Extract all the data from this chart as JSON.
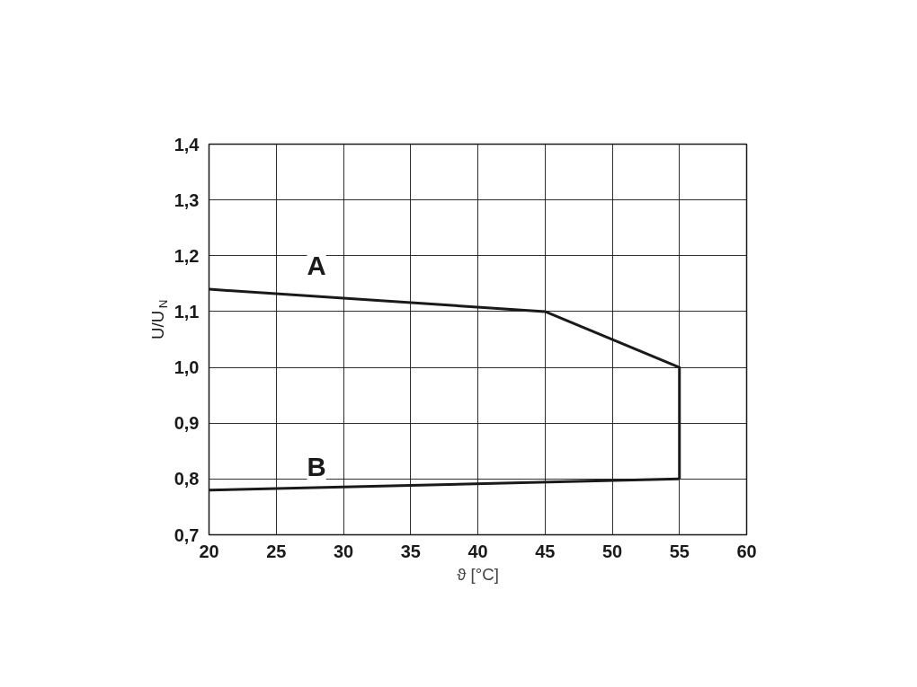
{
  "chart_data": {
    "type": "line",
    "xlabel": "ϑ [°C]",
    "ylabel": "U/U$_{N}$",
    "series": [
      {
        "name": "A",
        "color": "#1a1a1a",
        "x": [
          20,
          45,
          55,
          55
        ],
        "values": [
          1.14,
          1.1,
          1.0,
          0.8
        ]
      },
      {
        "name": "B",
        "color": "#1a1a1a",
        "x": [
          20,
          55
        ],
        "values": [
          0.78,
          0.8
        ]
      }
    ],
    "xlim": [
      20,
      60
    ],
    "xticks": [
      20,
      25,
      30,
      35,
      40,
      45,
      50,
      55,
      60
    ],
    "ylim": [
      0.7,
      1.4
    ],
    "yticks": [
      {
        "value": 0.7,
        "label": "0,7"
      },
      {
        "value": 0.8,
        "label": "0,8"
      },
      {
        "value": 0.9,
        "label": "0,9"
      },
      {
        "value": 1.0,
        "label": "1,0"
      },
      {
        "value": 1.1,
        "label": "1,1"
      },
      {
        "value": 1.2,
        "label": "1,2"
      },
      {
        "value": 1.3,
        "label": "1,3"
      },
      {
        "value": 1.4,
        "label": "1,4"
      }
    ],
    "grid": true,
    "marker": "none",
    "line_style": "solid"
  }
}
